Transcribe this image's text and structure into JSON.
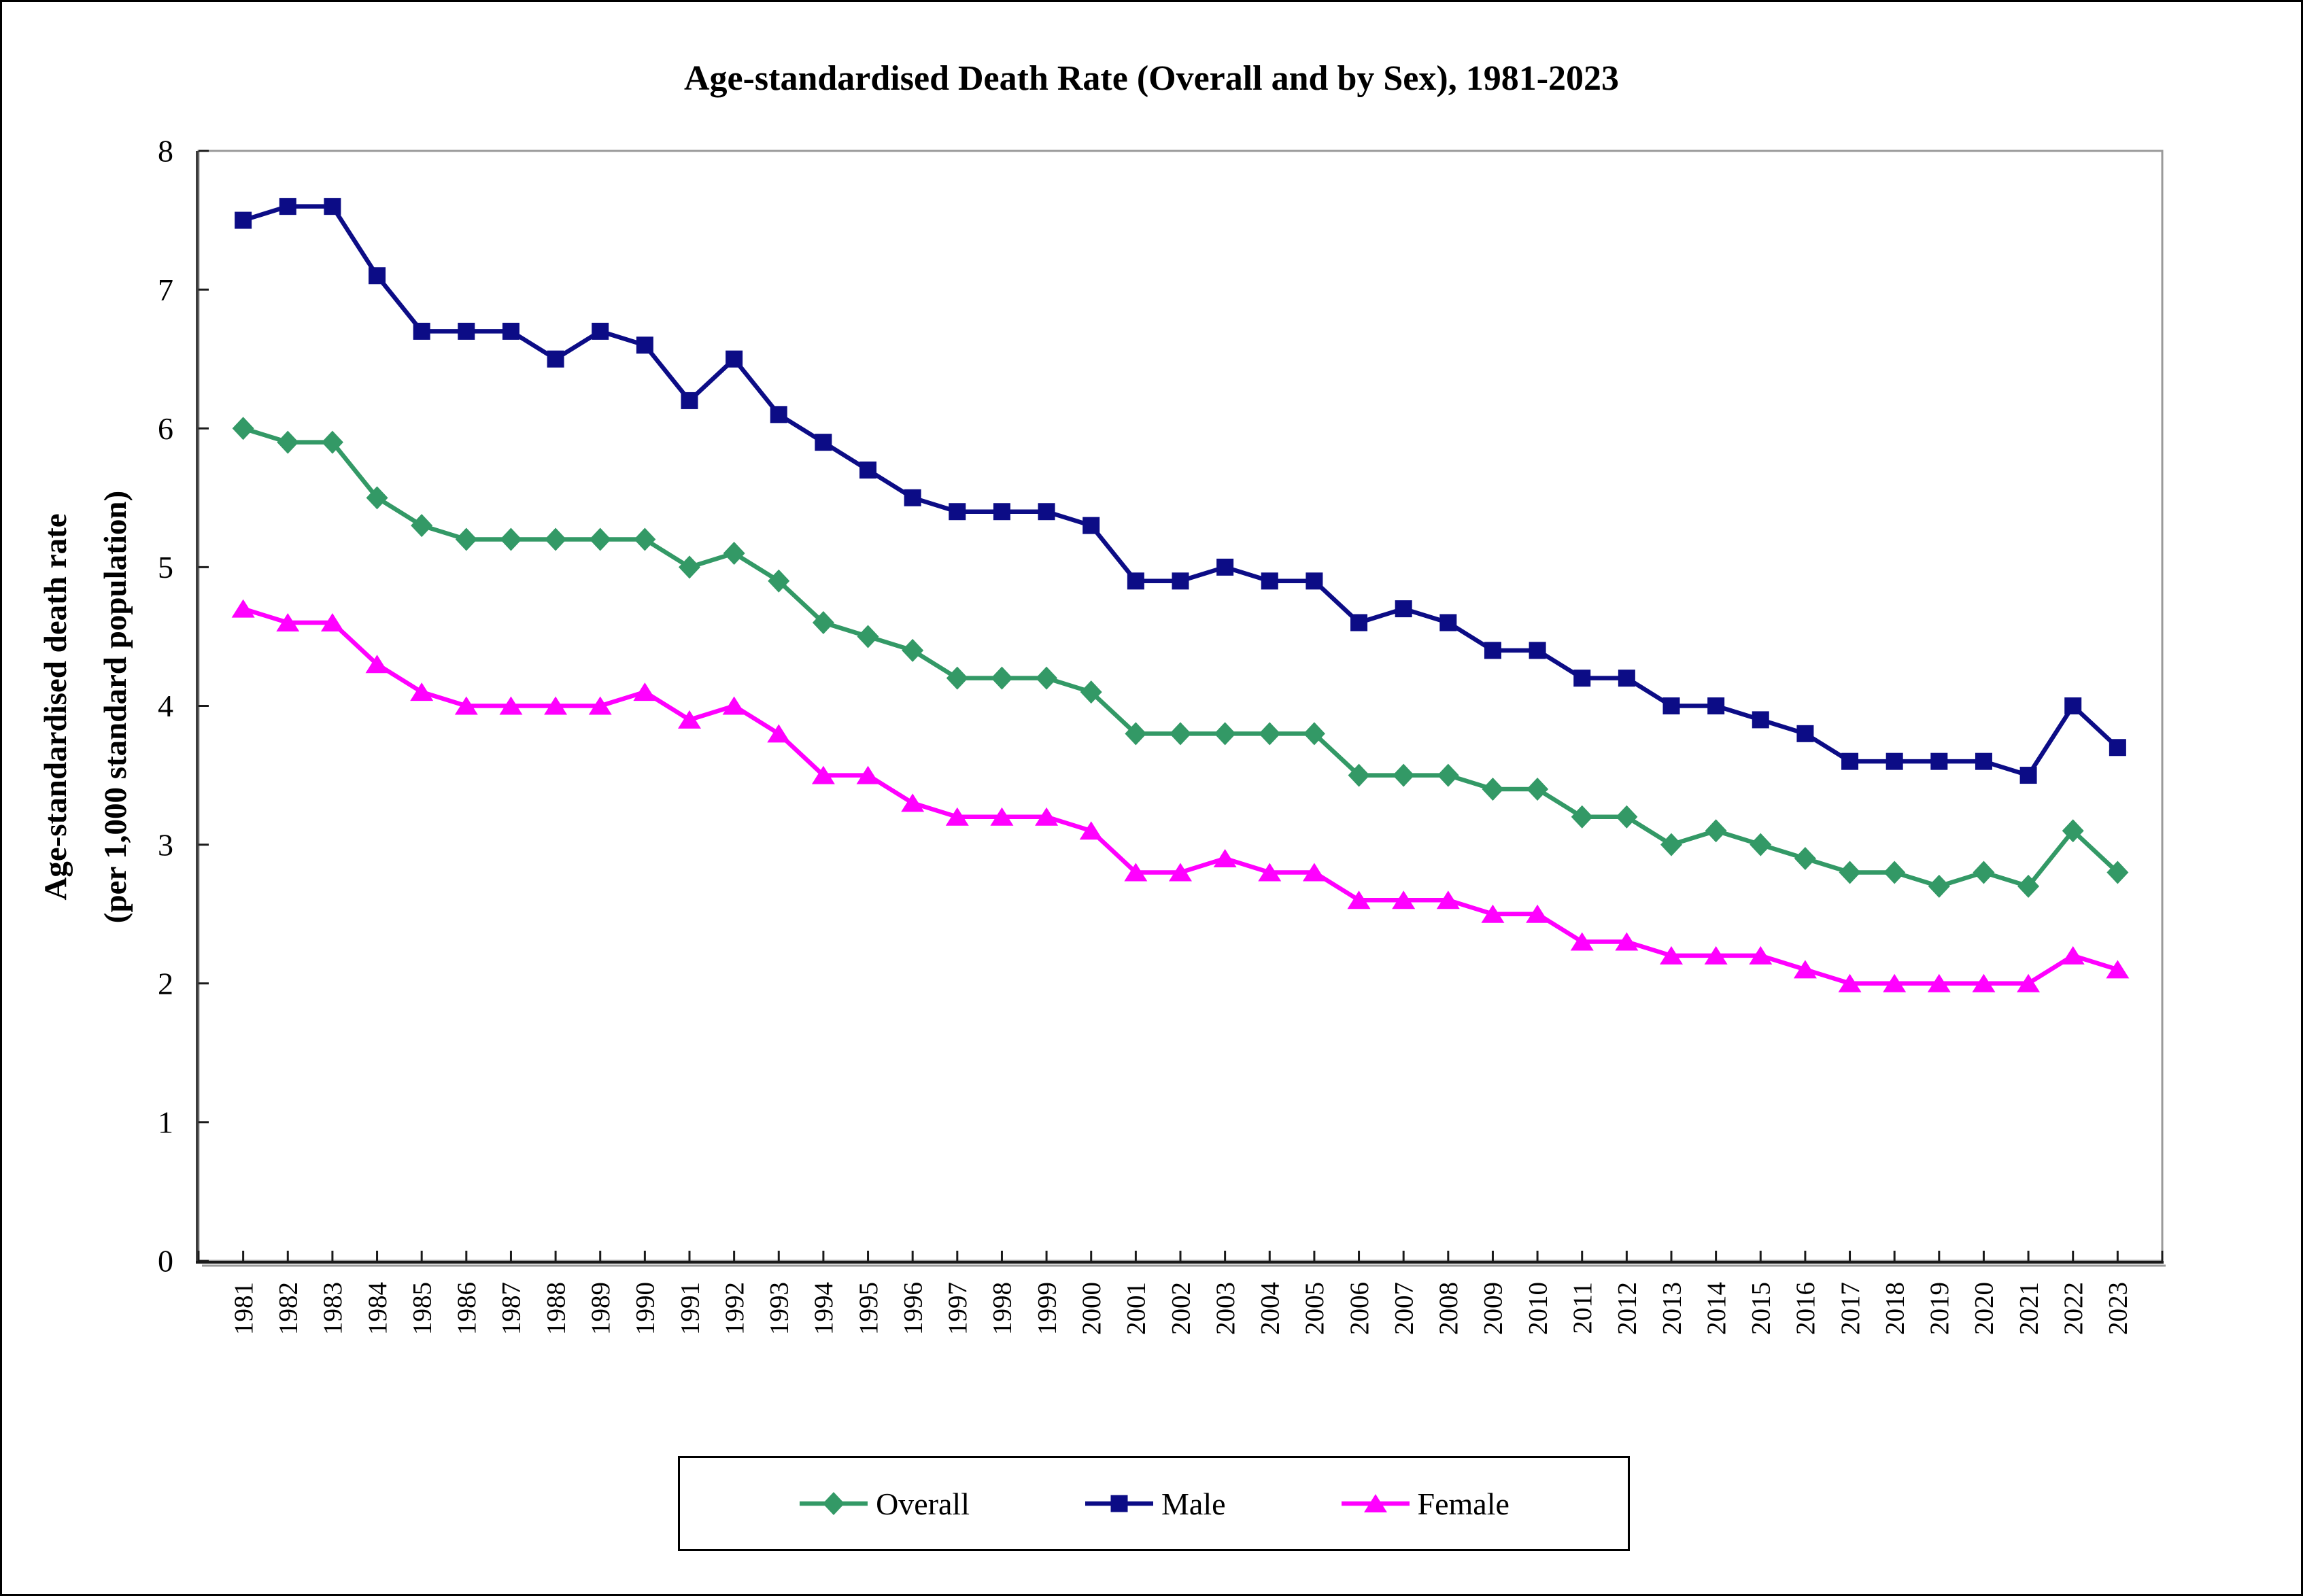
{
  "title": "Age-standardised Death Rate (Overall and by Sex), 1981-2023",
  "y_axis": {
    "label_line1": "Age-standardised death rate",
    "label_line2": "(per 1,000 standard population)",
    "tick_labels": [
      "0",
      "1",
      "2",
      "3",
      "4",
      "5",
      "6",
      "7",
      "8"
    ]
  },
  "x_axis": {
    "years": [
      "1981",
      "1982",
      "1983",
      "1984",
      "1985",
      "1986",
      "1987",
      "1988",
      "1989",
      "1990",
      "1991",
      "1992",
      "1993",
      "1994",
      "1995",
      "1996",
      "1997",
      "1998",
      "1999",
      "2000",
      "2001",
      "2002",
      "2003",
      "2004",
      "2005",
      "2006",
      "2007",
      "2008",
      "2009",
      "2010",
      "2011",
      "2012",
      "2013",
      "2014",
      "2015",
      "2016",
      "2017",
      "2018",
      "2019",
      "2020",
      "2021",
      "2022",
      "2023"
    ]
  },
  "colors": {
    "overall": "#339966",
    "male": "#0C0C86",
    "female": "#FF00FF",
    "plot_border": "#9A9A9A",
    "axis": "#1a1a1a",
    "text": "#000000"
  },
  "chart_data": {
    "type": "line",
    "title": "Age-standardised Death Rate (Overall and by Sex), 1981-2023",
    "xlabel": "",
    "ylabel": "Age-standardised death rate (per 1,000 standard population)",
    "x": [
      1981,
      1982,
      1983,
      1984,
      1985,
      1986,
      1987,
      1988,
      1989,
      1990,
      1991,
      1992,
      1993,
      1994,
      1995,
      1996,
      1997,
      1998,
      1999,
      2000,
      2001,
      2002,
      2003,
      2004,
      2005,
      2006,
      2007,
      2008,
      2009,
      2010,
      2011,
      2012,
      2013,
      2014,
      2015,
      2016,
      2017,
      2018,
      2019,
      2020,
      2021,
      2022,
      2023
    ],
    "ylim": [
      0,
      8
    ],
    "yticks": [
      0,
      1,
      2,
      3,
      4,
      5,
      6,
      7,
      8
    ],
    "grid": false,
    "legend_position": "bottom",
    "series": [
      {
        "name": "Overall",
        "marker": "diamond",
        "color": "#339966",
        "values": [
          6.0,
          5.9,
          5.9,
          5.5,
          5.3,
          5.2,
          5.2,
          5.2,
          5.2,
          5.2,
          5.0,
          5.1,
          4.9,
          4.6,
          4.5,
          4.4,
          4.2,
          4.2,
          4.2,
          4.1,
          3.8,
          3.8,
          3.8,
          3.8,
          3.8,
          3.5,
          3.5,
          3.5,
          3.4,
          3.4,
          3.2,
          3.2,
          3.0,
          3.1,
          3.0,
          2.9,
          2.8,
          2.8,
          2.7,
          2.8,
          2.7,
          3.1,
          2.8
        ]
      },
      {
        "name": "Male",
        "marker": "square",
        "color": "#0C0C86",
        "values": [
          7.5,
          7.6,
          7.6,
          7.1,
          6.7,
          6.7,
          6.7,
          6.5,
          6.7,
          6.6,
          6.2,
          6.5,
          6.1,
          5.9,
          5.7,
          5.5,
          5.4,
          5.4,
          5.4,
          5.3,
          4.9,
          4.9,
          5.0,
          4.9,
          4.9,
          4.6,
          4.7,
          4.6,
          4.4,
          4.4,
          4.2,
          4.2,
          4.0,
          4.0,
          3.9,
          3.8,
          3.6,
          3.6,
          3.6,
          3.6,
          3.5,
          4.0,
          3.7
        ]
      },
      {
        "name": "Female",
        "marker": "triangle",
        "color": "#FF00FF",
        "values": [
          4.7,
          4.6,
          4.6,
          4.3,
          4.1,
          4.0,
          4.0,
          4.0,
          4.0,
          4.1,
          3.9,
          4.0,
          3.8,
          3.5,
          3.5,
          3.3,
          3.2,
          3.2,
          3.2,
          3.1,
          2.8,
          2.8,
          2.9,
          2.8,
          2.8,
          2.6,
          2.6,
          2.6,
          2.5,
          2.5,
          2.3,
          2.3,
          2.2,
          2.2,
          2.2,
          2.1,
          2.0,
          2.0,
          2.0,
          2.0,
          2.0,
          2.2,
          2.1
        ]
      }
    ]
  }
}
